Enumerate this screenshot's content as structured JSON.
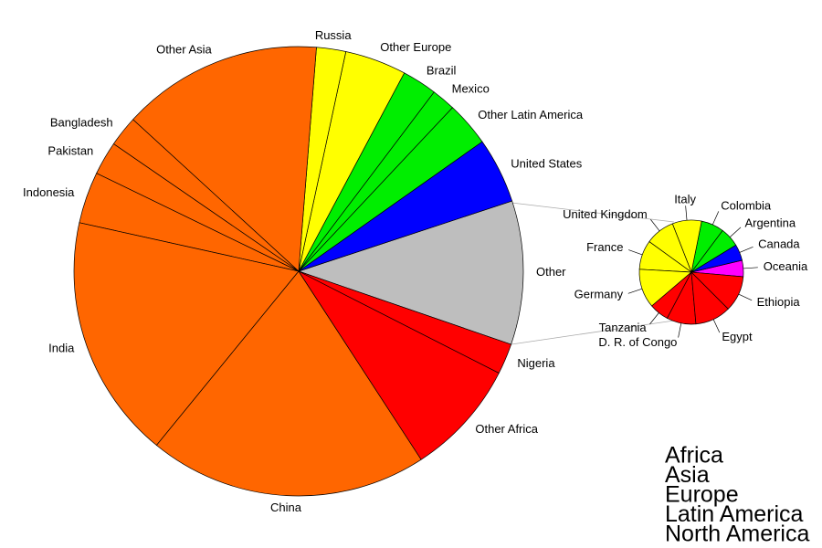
{
  "chart_data": [
    {
      "type": "pie",
      "categories": [
        "Other",
        "United States",
        "Other Latin America",
        "Mexico",
        "Brazil",
        "Other Europe",
        "Russia",
        "Other Asia",
        "Bangladesh",
        "Pakistan",
        "Indonesia",
        "India",
        "China",
        "Other Africa",
        "Nigeria"
      ],
      "values": [
        10.3,
        4.7,
        3.2,
        1.7,
        2.5,
        4.4,
        2.1,
        14.4,
        2.2,
        2.4,
        3.7,
        17.5,
        20,
        8.3,
        2.2
      ],
      "colors": [
        "#bebebe",
        "#0000ff",
        "#00ee00",
        "#00ee00",
        "#00ee00",
        "#ffff00",
        "#ffff00",
        "#ff6600",
        "#ff6600",
        "#ff6600",
        "#ff6600",
        "#ff6600",
        "#ff6600",
        "#ff0000",
        "#ff0000"
      ],
      "legend": {
        "labels": [
          "Africa",
          "Asia",
          "Europe",
          "Latin America",
          "North America"
        ],
        "colors": [
          "#ff0000",
          "#ff6600",
          "#ffff00",
          "#00ee00",
          "#0000ff"
        ]
      }
    },
    {
      "type": "pie",
      "categories": [
        "Oceania",
        "Canada",
        "Argentina",
        "Colombia",
        "Italy",
        "United Kingdom",
        "France",
        "Germany",
        "Tanzania",
        "D. R. of Congo",
        "Egypt",
        "Ethiopia"
      ],
      "values": [
        0.5,
        0.5,
        0.6,
        0.7,
        0.9,
        0.9,
        0.9,
        1.2,
        0.6,
        0.9,
        1.1,
        1.1
      ],
      "colors": [
        "#ff00ff",
        "#0000ff",
        "#00ee00",
        "#00ee00",
        "#ffff00",
        "#ffff00",
        "#ffff00",
        "#ffff00",
        "#ff0000",
        "#ff0000",
        "#ff0000",
        "#ff0000"
      ]
    }
  ]
}
